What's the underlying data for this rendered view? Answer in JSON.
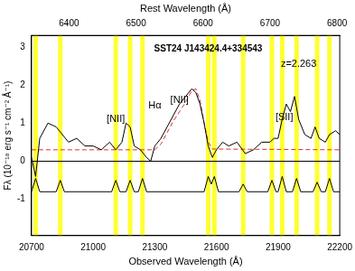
{
  "chart_data": {
    "type": "line",
    "xlabel": "Observed Wavelength (Å)",
    "ylabel": "Fλ (10⁻¹⁸ erg s⁻¹ cm⁻² Å⁻¹)",
    "x2label": "Rest Wavelength (Å)",
    "xlim": [
      20700,
      22200
    ],
    "xticks": [
      20700,
      21000,
      21300,
      21600,
      21900,
      22200
    ],
    "x2lim": [
      6344,
      6804
    ],
    "x2ticks": [
      6400,
      6500,
      6600,
      6700,
      6800
    ],
    "ylim": [
      -1.95,
      3.3
    ],
    "yticks": [
      -1,
      0,
      1,
      2,
      3
    ],
    "grid": false,
    "reference_line": 0,
    "sky_bands": [
      20720,
      20840,
      21110,
      21180,
      21240,
      21560,
      21590,
      21730,
      21870,
      21920,
      21990,
      22090,
      22150
    ],
    "annotations": [
      {
        "text": "SST24 J143424.4+334543",
        "x": 21560,
        "y": 2.95
      },
      {
        "text": "z=2.263",
        "x": 22000,
        "y": 2.55
      },
      {
        "text": "[NII]",
        "x": 21110,
        "y": 1.1
      },
      {
        "text": "Hα",
        "x": 21300,
        "y": 1.45
      },
      {
        "text": "[NII]",
        "x": 21420,
        "y": 1.6
      },
      {
        "text": "[SII]",
        "x": 21930,
        "y": 1.15
      }
    ],
    "series": [
      {
        "color": "#000000",
        "line_style": "solid",
        "x": [
          20700,
          20720,
          20740,
          20780,
          20820,
          20850,
          20880,
          20920,
          20960,
          21000,
          21040,
          21080,
          21110,
          21140,
          21160,
          21180,
          21200,
          21230,
          21260,
          21280,
          21300,
          21330,
          21360,
          21390,
          21420,
          21450,
          21480,
          21500,
          21520,
          21540,
          21560,
          21580,
          21600,
          21630,
          21660,
          21700,
          21740,
          21780,
          21820,
          21860,
          21880,
          21900,
          21920,
          21940,
          21960,
          21980,
          22000,
          22030,
          22060,
          22080,
          22100,
          22130,
          22150,
          22180,
          22200
        ],
        "values": [
          0.1,
          -0.4,
          0.6,
          1.0,
          0.9,
          0.7,
          0.5,
          0.6,
          0.4,
          0.4,
          0.3,
          0.5,
          0.3,
          0.5,
          1.0,
          0.9,
          0.4,
          0.3,
          0.1,
          0.0,
          0.4,
          0.6,
          0.9,
          1.2,
          1.5,
          1.7,
          1.9,
          1.8,
          1.5,
          1.0,
          0.4,
          0.1,
          0.3,
          0.5,
          0.4,
          0.5,
          0.2,
          0.3,
          0.5,
          0.5,
          0.6,
          0.6,
          1.1,
          1.5,
          1.3,
          1.7,
          1.1,
          0.7,
          0.6,
          0.9,
          0.6,
          0.5,
          0.7,
          0.8,
          0.7
        ]
      },
      {
        "color": "#e03030",
        "line_style": "dashed",
        "x": [
          20700,
          21300,
          21330,
          21360,
          21390,
          21420,
          21450,
          21480,
          21500,
          21520,
          21540,
          21560,
          21580,
          22200
        ],
        "values": [
          0.3,
          0.3,
          0.45,
          0.75,
          1.05,
          1.3,
          1.55,
          1.85,
          1.9,
          1.6,
          1.0,
          0.5,
          0.32,
          0.3
        ]
      },
      {
        "color": "#000000",
        "line_style": "solid",
        "x": [
          20700,
          20720,
          20740,
          20820,
          20840,
          20860,
          21090,
          21110,
          21130,
          21160,
          21180,
          21200,
          21220,
          21240,
          21260,
          21540,
          21560,
          21575,
          21590,
          21610,
          21710,
          21730,
          21750,
          21850,
          21870,
          21890,
          21900,
          21920,
          21940,
          21970,
          21990,
          22010,
          22070,
          22090,
          22110,
          22130,
          22150,
          22170,
          22200
        ],
        "values": [
          -0.8,
          -0.45,
          -0.8,
          -0.8,
          -0.5,
          -0.8,
          -0.8,
          -0.5,
          -0.8,
          -0.8,
          -0.5,
          -0.8,
          -0.8,
          -0.45,
          -0.8,
          -0.8,
          -0.4,
          -0.6,
          -0.4,
          -0.8,
          -0.8,
          -0.6,
          -0.8,
          -0.8,
          -0.5,
          -0.8,
          -0.8,
          -0.4,
          -0.8,
          -0.8,
          -0.45,
          -0.8,
          -0.8,
          -0.55,
          -0.8,
          -0.8,
          -0.45,
          -0.8,
          -0.8
        ]
      }
    ]
  }
}
